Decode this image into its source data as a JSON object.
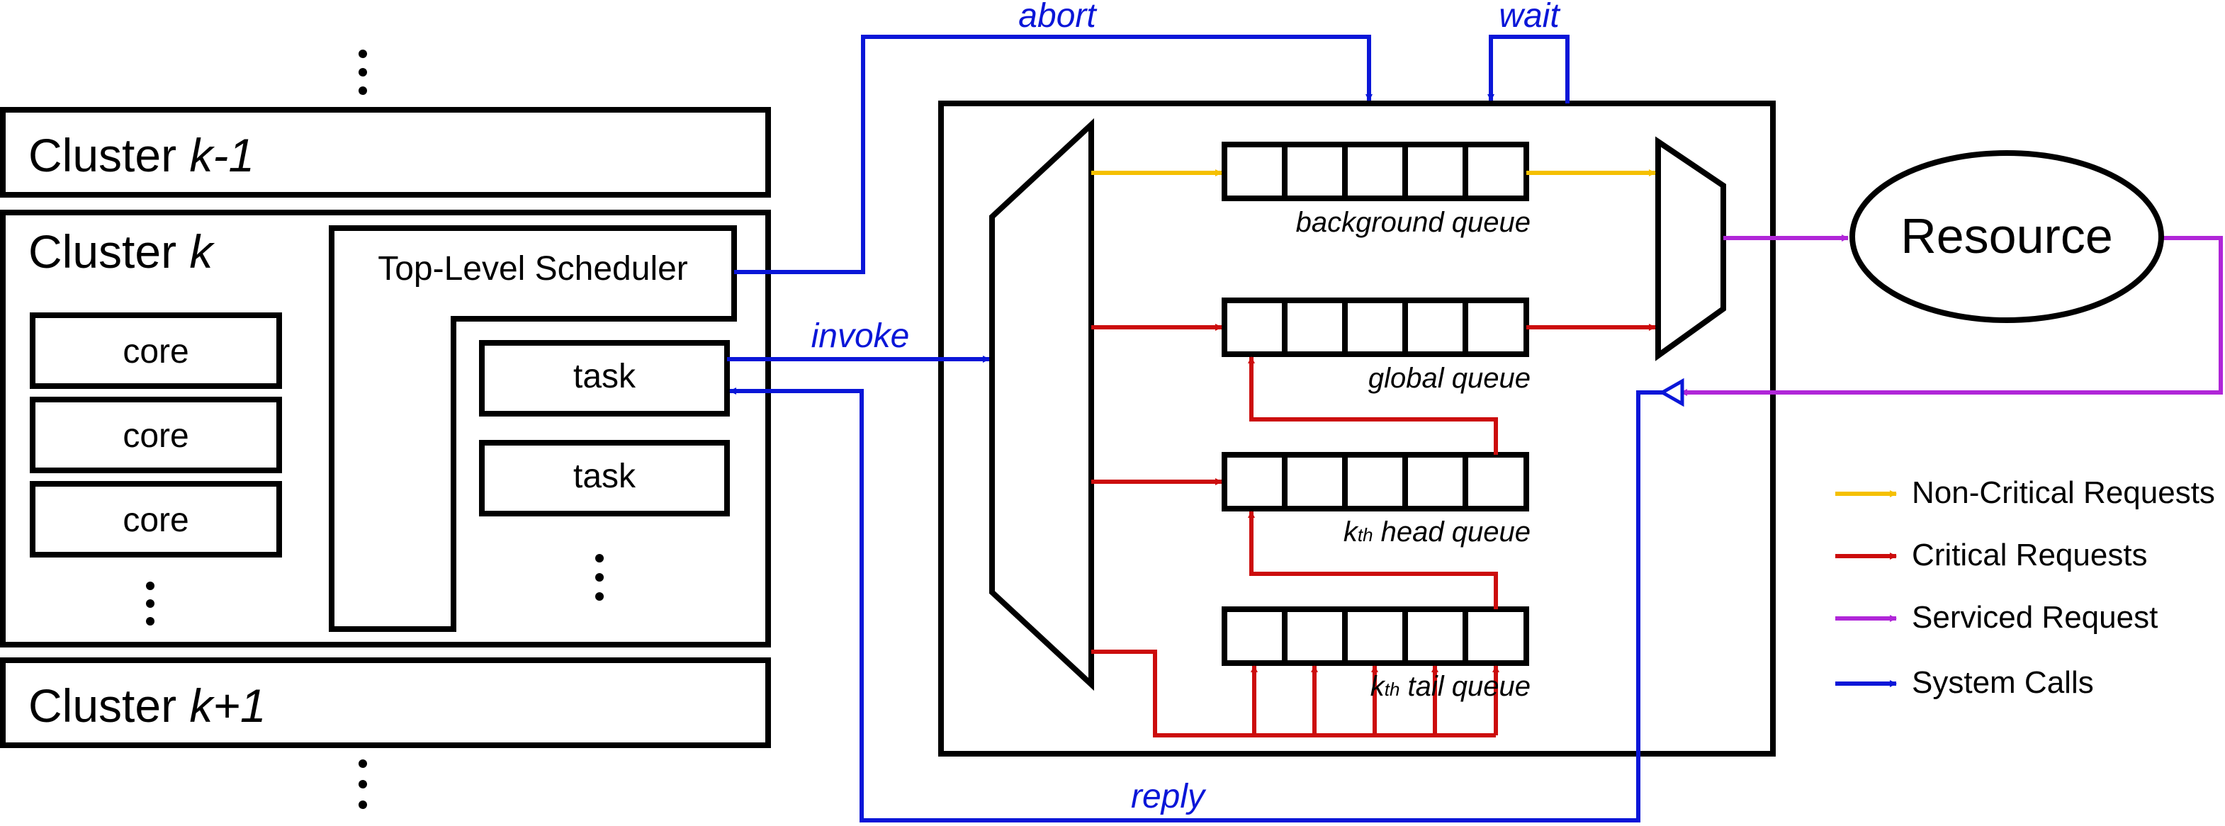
{
  "clusters": {
    "prev": {
      "prefix": "Cluster ",
      "var": "k-1"
    },
    "current": {
      "prefix": "Cluster ",
      "var": "k"
    },
    "next": {
      "prefix": "Cluster ",
      "var": "k+1"
    }
  },
  "cores": [
    "core",
    "core",
    "core"
  ],
  "scheduler": {
    "label": "Top-Level Scheduler"
  },
  "tasks": [
    "task",
    "task"
  ],
  "syscalls": {
    "abort": "abort",
    "wait": "wait",
    "invoke": "invoke",
    "reply": "reply"
  },
  "queues": {
    "background": "background queue",
    "global": "global queue",
    "head": {
      "sub": "th",
      "pre": "k",
      "rest": " head queue"
    },
    "tail": {
      "sub": "th",
      "pre": "k",
      "rest": " tail queue"
    }
  },
  "resource": {
    "label": "Resource"
  },
  "legend": [
    {
      "label": "Non-Critical Requests",
      "color": "#f5c000"
    },
    {
      "label": "Critical Requests",
      "color": "#cc0c0c"
    },
    {
      "label": "Serviced Request",
      "color": "#b026d8"
    },
    {
      "label": "System Calls",
      "color": "#0a16d8"
    }
  ],
  "colors": {
    "noncritical": "#f5c000",
    "critical": "#cc0c0c",
    "serviced": "#b026d8",
    "syscall": "#0a16d8"
  }
}
